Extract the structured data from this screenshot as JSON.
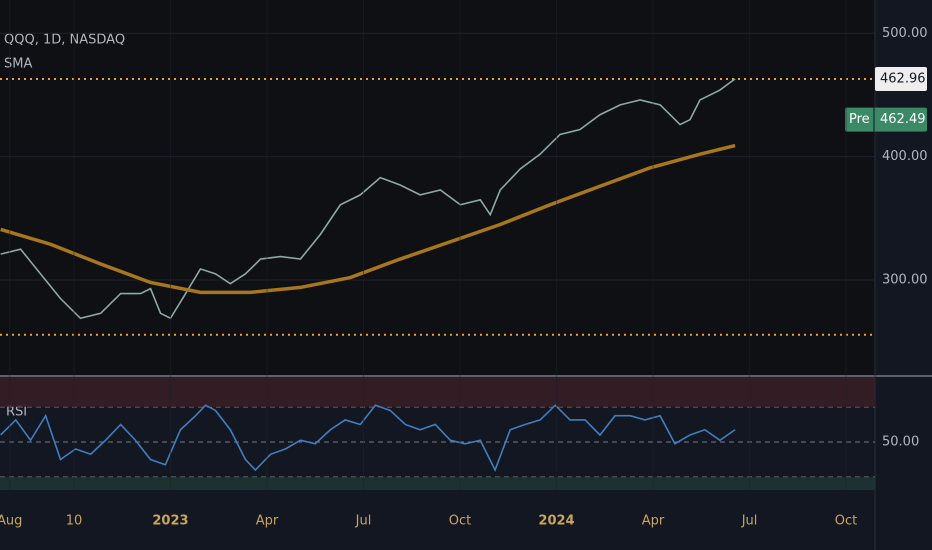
{
  "chart_data": [
    {
      "type": "line",
      "title": "QQQ, 1D, NASDAQ",
      "subtitle": "SMA",
      "xlim": [
        -0.3,
        26.9
      ],
      "ylim": [
        223,
        527
      ],
      "yticks": [
        {
          "value": 300,
          "label": "300.00"
        },
        {
          "value": 400,
          "label": "400.00"
        },
        {
          "value": 500,
          "label": "500.00"
        }
      ],
      "grid": true,
      "series": [
        {
          "name": "QQQ",
          "color": "#8fa8a0",
          "x": [
            -0.28,
            0.34,
            0.96,
            1.58,
            2.2,
            2.83,
            3.45,
            4.07,
            4.38,
            4.69,
            5,
            5.47,
            5.93,
            6.4,
            6.86,
            7.33,
            7.8,
            8.42,
            9.04,
            9.66,
            10.28,
            10.9,
            11.52,
            12.14,
            12.76,
            13.39,
            14.01,
            14.63,
            14.94,
            15.25,
            15.87,
            16.49,
            17.11,
            17.73,
            18.35,
            18.98,
            19.6,
            20.22,
            20.84,
            21.15,
            21.46,
            22.08,
            22.39,
            22.55
          ],
          "values": [
            321,
            325,
            305,
            285,
            269,
            273,
            289,
            289,
            293,
            273,
            269,
            289,
            309,
            305,
            297,
            305,
            317,
            319,
            317,
            337,
            361,
            369,
            383,
            377,
            369,
            373,
            361,
            365,
            353,
            373,
            390,
            402,
            418,
            422,
            434,
            442,
            446,
            442,
            426,
            430,
            446,
            454,
            460,
            462.96
          ]
        },
        {
          "name": "SMA",
          "color": "#a8761c",
          "x": [
            -0.28,
            1.27,
            2.83,
            4.38,
            5.93,
            7.48,
            9.04,
            10.59,
            12.14,
            13.7,
            15.25,
            16.8,
            18.35,
            19.91,
            21.46,
            22.55
          ],
          "values": [
            341,
            329,
            313,
            298,
            290,
            290,
            294,
            302,
            317,
            331,
            345,
            361,
            376,
            391,
            402,
            409
          ]
        }
      ],
      "hlines": [
        462.96,
        255.6
      ],
      "hline_color": "#f0a030",
      "last_price": {
        "value": 462.96,
        "label": "462.96"
      },
      "premarket": {
        "tag": "Pre",
        "value": 462.49,
        "label": "462.49",
        "color": "#3a8a66"
      }
    },
    {
      "type": "line",
      "title": "RSI",
      "xlim": [
        -0.3,
        26.9
      ],
      "ylim": [
        22.6,
        87.1
      ],
      "yticks": [
        {
          "value": 50,
          "label": "50.00"
        }
      ],
      "levels": [
        70,
        50,
        30
      ],
      "xticks": [
        {
          "value": 0,
          "label": "Aug"
        },
        {
          "value": 2,
          "label": "10"
        },
        {
          "value": 5,
          "label": "2023"
        },
        {
          "value": 8,
          "label": "Apr"
        },
        {
          "value": 11,
          "label": "Jul"
        },
        {
          "value": 14,
          "label": "Oct"
        },
        {
          "value": 17,
          "label": "2024"
        },
        {
          "value": 20,
          "label": "Apr"
        },
        {
          "value": 23,
          "label": "Jul"
        },
        {
          "value": 26,
          "label": "Oct"
        }
      ],
      "series": [
        {
          "name": "RSI",
          "color": "#3f7fc0",
          "x": [
            -0.28,
            0.19,
            0.65,
            1.12,
            1.58,
            2.05,
            2.52,
            2.98,
            3.45,
            3.91,
            4.38,
            4.84,
            5.31,
            5.78,
            6.09,
            6.4,
            6.86,
            7.33,
            7.64,
            8.11,
            8.57,
            9.04,
            9.5,
            9.97,
            10.43,
            10.9,
            11.37,
            11.83,
            12.3,
            12.76,
            13.23,
            13.7,
            14.16,
            14.63,
            15.09,
            15.56,
            16.02,
            16.49,
            16.96,
            17.42,
            17.89,
            18.35,
            18.82,
            19.29,
            19.75,
            20.22,
            20.68,
            21.15,
            21.61,
            22.08,
            22.55
          ],
          "values": [
            54,
            62.6,
            51,
            65,
            40,
            46,
            43,
            51,
            60,
            51,
            40,
            37,
            57,
            65,
            71,
            68,
            57,
            40,
            34,
            43,
            46,
            51,
            49,
            57,
            62.6,
            60,
            71,
            68,
            60,
            57,
            60,
            51,
            49,
            51,
            34,
            57,
            60,
            62.6,
            71,
            62.6,
            62.6,
            54,
            65,
            65,
            62.6,
            65,
            49,
            54,
            57,
            51,
            57
          ]
        }
      ]
    }
  ]
}
